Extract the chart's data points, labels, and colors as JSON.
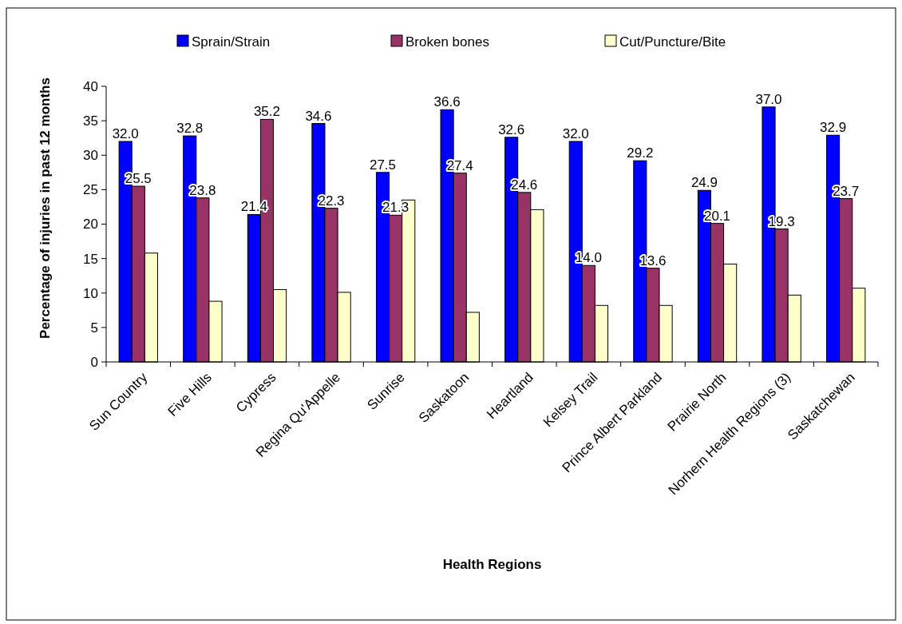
{
  "chart_data": {
    "type": "bar",
    "xlabel": "Health Regions",
    "ylabel": "Percentage of injuries in past 12 months",
    "categories": [
      "Sun Country",
      "Five Hills",
      "Cypress",
      "Regina Qu'Appelle",
      "Sunrise",
      "Saskatoon",
      "Heartland",
      "Kelsey Trail",
      "Prince Albert Parkland",
      "Prairie North",
      "Norhern Health Regions (3)",
      "Saskatchewan"
    ],
    "series": [
      {
        "name": "Sprain/Strain",
        "color": "#0000ff",
        "values": [
          32.0,
          32.8,
          21.4,
          34.6,
          27.5,
          36.6,
          32.6,
          32.0,
          29.2,
          24.9,
          37.0,
          32.9
        ],
        "value_labels": [
          "32.0",
          "32.8",
          "21.4",
          "34.6",
          "27.5",
          "36.6",
          "32.6",
          "32.0",
          "29.2",
          "24.9",
          "37.0",
          "32.9"
        ]
      },
      {
        "name": "Broken bones",
        "color": "#993366",
        "values": [
          25.5,
          23.8,
          35.2,
          22.3,
          21.3,
          27.4,
          24.6,
          14.0,
          13.6,
          20.1,
          19.3,
          23.7
        ],
        "value_labels": [
          "25.5",
          "23.8",
          "35.2",
          "22.3",
          "21.3",
          "27.4",
          "24.6",
          "14.0",
          "13.6",
          "20.1",
          "19.3",
          "23.7"
        ]
      },
      {
        "name": "Cut/Puncture/Bite",
        "color": "#ffffcc",
        "values": [
          15.8,
          8.8,
          10.5,
          10.1,
          23.5,
          7.2,
          22.1,
          8.2,
          8.2,
          14.2,
          9.7,
          10.7
        ]
      }
    ],
    "ylim": [
      0,
      40
    ],
    "yticks": [
      0,
      5,
      10,
      15,
      20,
      25,
      30,
      35,
      40
    ],
    "grid": false,
    "legend": "top"
  }
}
